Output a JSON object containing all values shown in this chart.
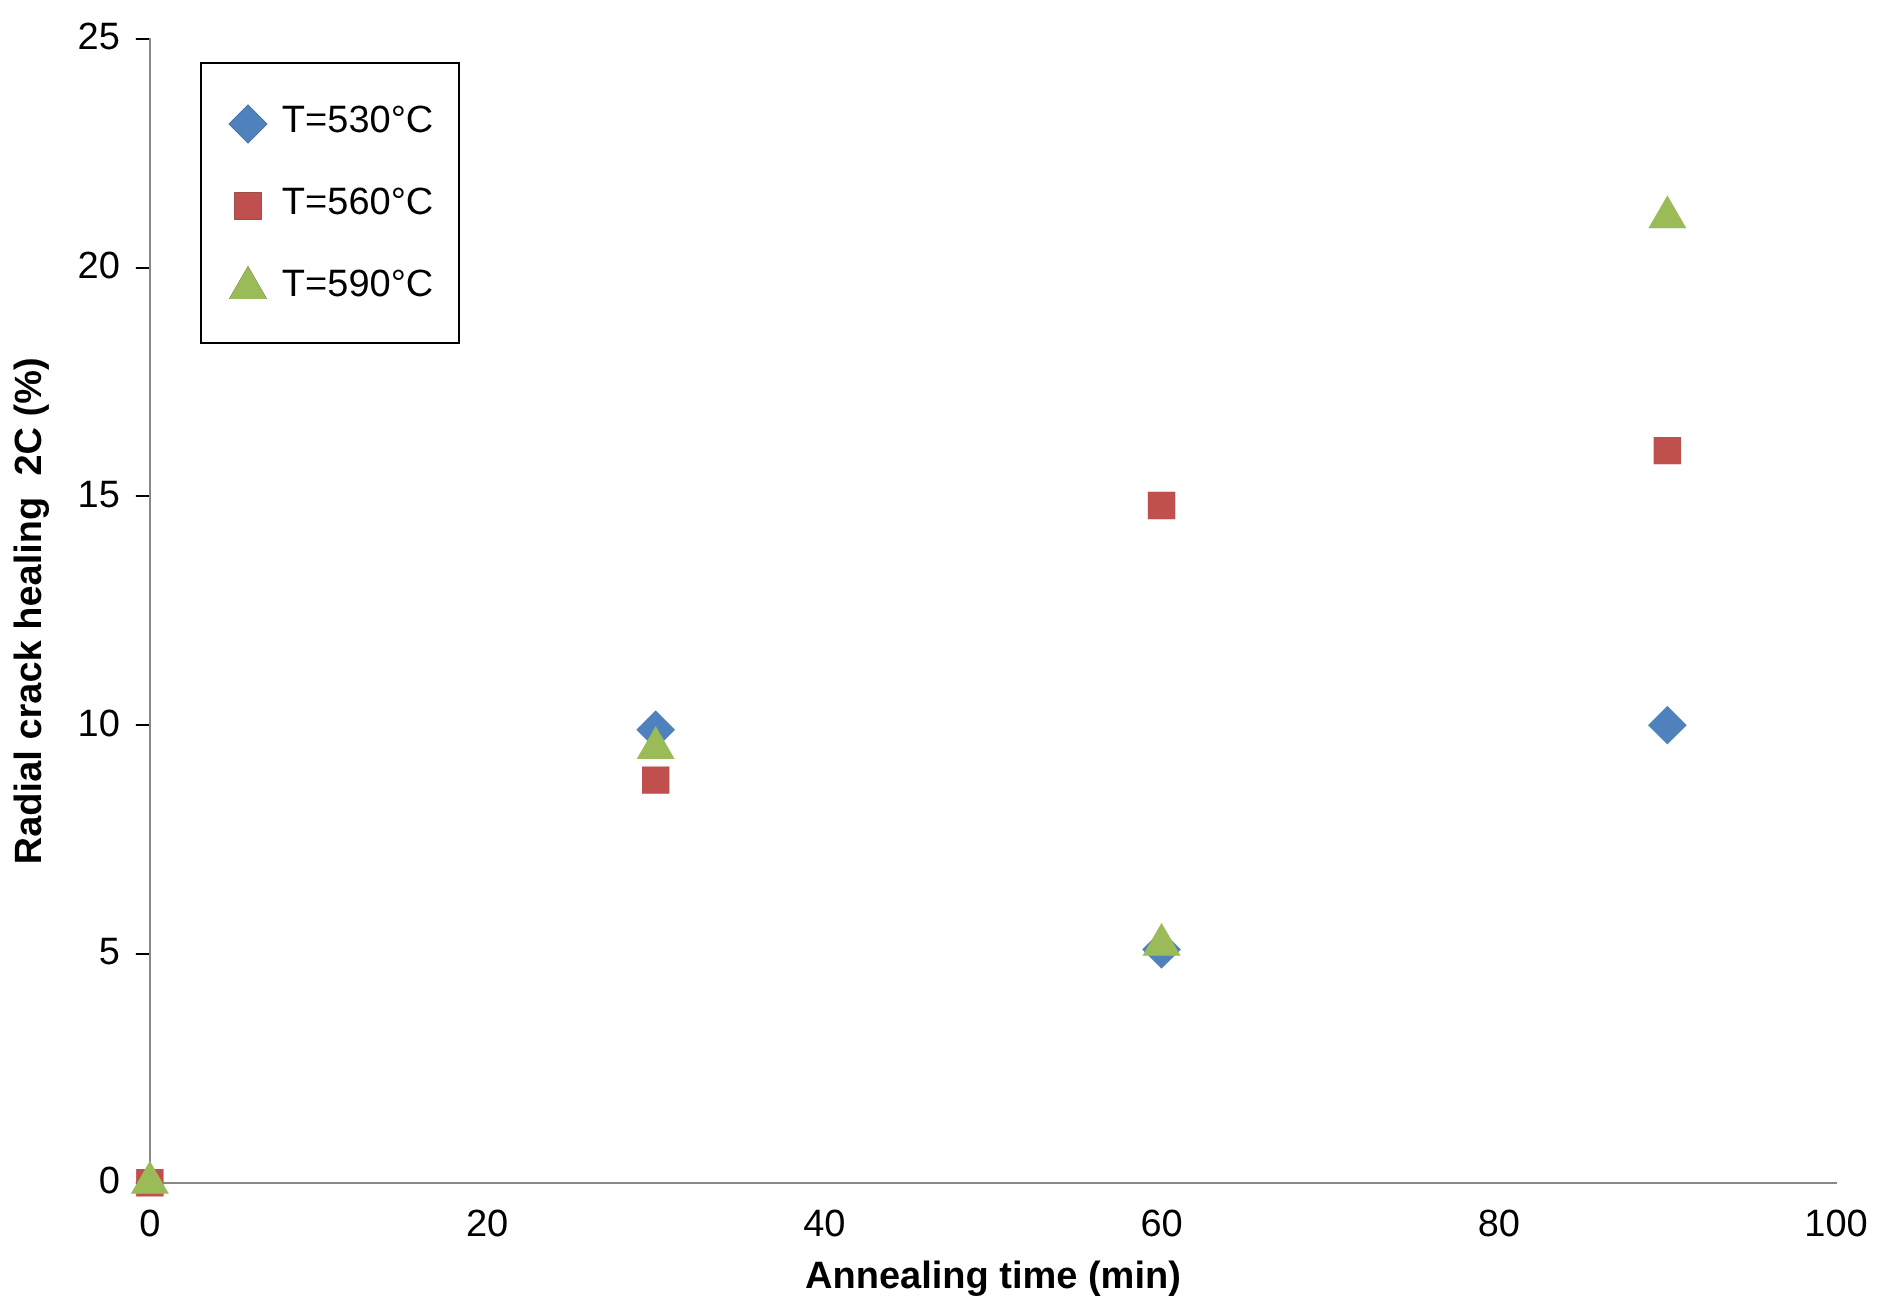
{
  "chart_data": {
    "type": "scatter",
    "xlabel": "Annealing time (min)",
    "ylabel": "Radial crack healing  2C (%)",
    "xlim": [
      0,
      100
    ],
    "xticks": [
      0,
      20,
      40,
      60,
      80,
      100
    ],
    "ylim": [
      0,
      25
    ],
    "yticks": [
      0,
      5,
      10,
      15,
      20,
      25
    ],
    "grid": false,
    "legend": "top left",
    "series": [
      {
        "name": "T=530°C",
        "color": "#4f81bd",
        "marker": "diamond",
        "x": [
          30,
          60,
          90
        ],
        "values": [
          9.9,
          5.1,
          10.0
        ]
      },
      {
        "name": "T=560°C",
        "color": "#c0504d",
        "marker": "square",
        "x": [
          0,
          30,
          60,
          90
        ],
        "values": [
          0,
          8.8,
          14.8,
          16.0
        ]
      },
      {
        "name": "T=590°C",
        "color": "#9bbb59",
        "marker": "triangle",
        "x": [
          0,
          30,
          60,
          90
        ],
        "values": [
          0,
          9.5,
          5.2,
          21.1
        ]
      }
    ]
  }
}
